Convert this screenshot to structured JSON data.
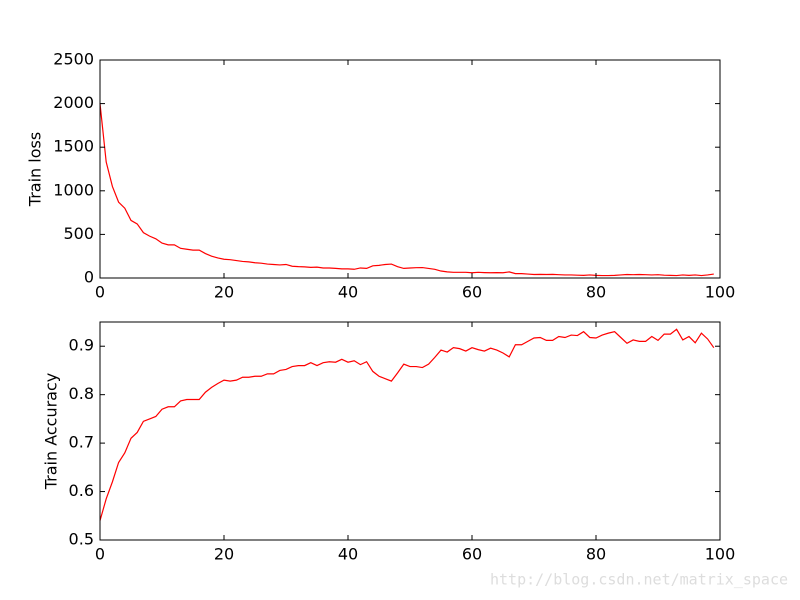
{
  "chart_data": [
    {
      "type": "line",
      "ylabel": "Train loss",
      "color": "#ff0000",
      "x": [
        0,
        1,
        2,
        3,
        4,
        5,
        6,
        7,
        8,
        9,
        10,
        11,
        12,
        13,
        14,
        15,
        16,
        17,
        18,
        19,
        20,
        21,
        22,
        23,
        24,
        25,
        26,
        27,
        28,
        29,
        30,
        31,
        32,
        33,
        34,
        35,
        36,
        37,
        38,
        39,
        40,
        41,
        42,
        43,
        44,
        45,
        46,
        47,
        48,
        49,
        50,
        51,
        52,
        53,
        54,
        55,
        56,
        57,
        58,
        59,
        60,
        61,
        62,
        63,
        64,
        65,
        66,
        67,
        68,
        69,
        70,
        71,
        72,
        73,
        74,
        75,
        76,
        77,
        78,
        79,
        80,
        81,
        82,
        83,
        84,
        85,
        86,
        87,
        88,
        89,
        90,
        91,
        92,
        93,
        94,
        95,
        96,
        97,
        98,
        99
      ],
      "values": [
        2000,
        1330,
        1050,
        870,
        800,
        660,
        620,
        520,
        480,
        450,
        400,
        380,
        380,
        340,
        330,
        320,
        320,
        280,
        250,
        230,
        215,
        210,
        200,
        190,
        185,
        175,
        170,
        160,
        155,
        150,
        155,
        135,
        130,
        128,
        122,
        125,
        115,
        115,
        110,
        105,
        105,
        100,
        115,
        110,
        140,
        145,
        155,
        160,
        130,
        110,
        115,
        118,
        120,
        110,
        100,
        80,
        70,
        65,
        65,
        65,
        60,
        65,
        62,
        60,
        62,
        60,
        70,
        50,
        50,
        45,
        40,
        42,
        40,
        42,
        38,
        35,
        35,
        32,
        30,
        35,
        30,
        28,
        28,
        30,
        35,
        40,
        38,
        40,
        38,
        35,
        38,
        32,
        30,
        28,
        35,
        30,
        35,
        28,
        35,
        45
      ],
      "xlim": [
        0,
        100
      ],
      "xticks": [
        0,
        20,
        40,
        60,
        80,
        100
      ],
      "ylim": [
        0,
        2500
      ],
      "yticks": [
        0,
        500,
        1000,
        1500,
        2000,
        2500
      ]
    },
    {
      "type": "line",
      "ylabel": "Train Accuracy",
      "color": "#ff0000",
      "x": [
        0,
        1,
        2,
        3,
        4,
        5,
        6,
        7,
        8,
        9,
        10,
        11,
        12,
        13,
        14,
        15,
        16,
        17,
        18,
        19,
        20,
        21,
        22,
        23,
        24,
        25,
        26,
        27,
        28,
        29,
        30,
        31,
        32,
        33,
        34,
        35,
        36,
        37,
        38,
        39,
        40,
        41,
        42,
        43,
        44,
        45,
        46,
        47,
        48,
        49,
        50,
        51,
        52,
        53,
        54,
        55,
        56,
        57,
        58,
        59,
        60,
        61,
        62,
        63,
        64,
        65,
        66,
        67,
        68,
        69,
        70,
        71,
        72,
        73,
        74,
        75,
        76,
        77,
        78,
        79,
        80,
        81,
        82,
        83,
        84,
        85,
        86,
        87,
        88,
        89,
        90,
        91,
        92,
        93,
        94,
        95,
        96,
        97,
        98,
        99
      ],
      "values": [
        0.54,
        0.585,
        0.62,
        0.66,
        0.68,
        0.71,
        0.722,
        0.745,
        0.75,
        0.755,
        0.77,
        0.775,
        0.775,
        0.787,
        0.79,
        0.79,
        0.79,
        0.805,
        0.815,
        0.823,
        0.83,
        0.828,
        0.83,
        0.836,
        0.836,
        0.838,
        0.838,
        0.843,
        0.843,
        0.85,
        0.852,
        0.858,
        0.86,
        0.86,
        0.866,
        0.86,
        0.866,
        0.868,
        0.867,
        0.873,
        0.867,
        0.87,
        0.862,
        0.868,
        0.848,
        0.838,
        0.833,
        0.828,
        0.845,
        0.863,
        0.858,
        0.858,
        0.856,
        0.863,
        0.877,
        0.892,
        0.888,
        0.897,
        0.895,
        0.89,
        0.897,
        0.893,
        0.89,
        0.896,
        0.892,
        0.886,
        0.878,
        0.903,
        0.903,
        0.91,
        0.917,
        0.918,
        0.912,
        0.912,
        0.92,
        0.918,
        0.923,
        0.922,
        0.93,
        0.918,
        0.917,
        0.923,
        0.927,
        0.93,
        0.918,
        0.906,
        0.913,
        0.91,
        0.91,
        0.92,
        0.912,
        0.925,
        0.925,
        0.935,
        0.913,
        0.92,
        0.907,
        0.927,
        0.915,
        0.897
      ],
      "xlim": [
        0,
        100
      ],
      "xticks": [
        0,
        20,
        40,
        60,
        80,
        100
      ],
      "ylim": [
        0.5,
        0.95
      ],
      "yticks": [
        0.5,
        0.6,
        0.7,
        0.8,
        0.9
      ]
    }
  ],
  "watermark": "http://blog.csdn.net/matrix_space"
}
